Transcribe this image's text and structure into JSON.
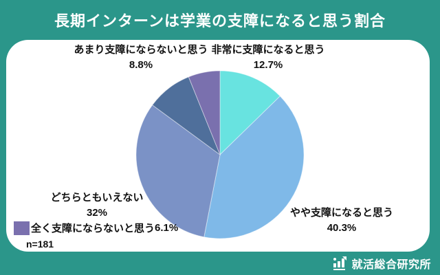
{
  "title": "長期インターンは学業の支障になると思う割合",
  "sample_size": "n=181",
  "logo": {
    "text": "就活総合研究所"
  },
  "colors": {
    "background_teal": "#2b968a",
    "card_white": "#ffffff",
    "title_text": "#ffffff",
    "label_text": "#111111"
  },
  "chart_data": {
    "type": "pie",
    "title": "長期インターンは学業の支障になると思う割合",
    "n": 181,
    "start_angle": "12-oclock",
    "direction": "clockwise",
    "segments": [
      {
        "label": "非常に支障になると思う",
        "value": 12.7,
        "pct_label": "12.7%",
        "color": "#68e3e0"
      },
      {
        "label": "やや支障になると思う",
        "value": 40.3,
        "pct_label": "40.3%",
        "color": "#7fb9e8"
      },
      {
        "label": "どちらともいえない",
        "value": 32,
        "pct_label": "32%",
        "color": "#7b92c6"
      },
      {
        "label": "あまり支障にならないと思う",
        "value": 8.8,
        "pct_label": "8.8%",
        "color": "#4f6f9b"
      },
      {
        "label": "全く支障にならないと思う",
        "value": 6.1,
        "pct_label": "6.1%",
        "color": "#7a70ae"
      }
    ],
    "legend": {
      "shown_for": "全く支障にならないと思う",
      "position": "bottom-left"
    }
  }
}
